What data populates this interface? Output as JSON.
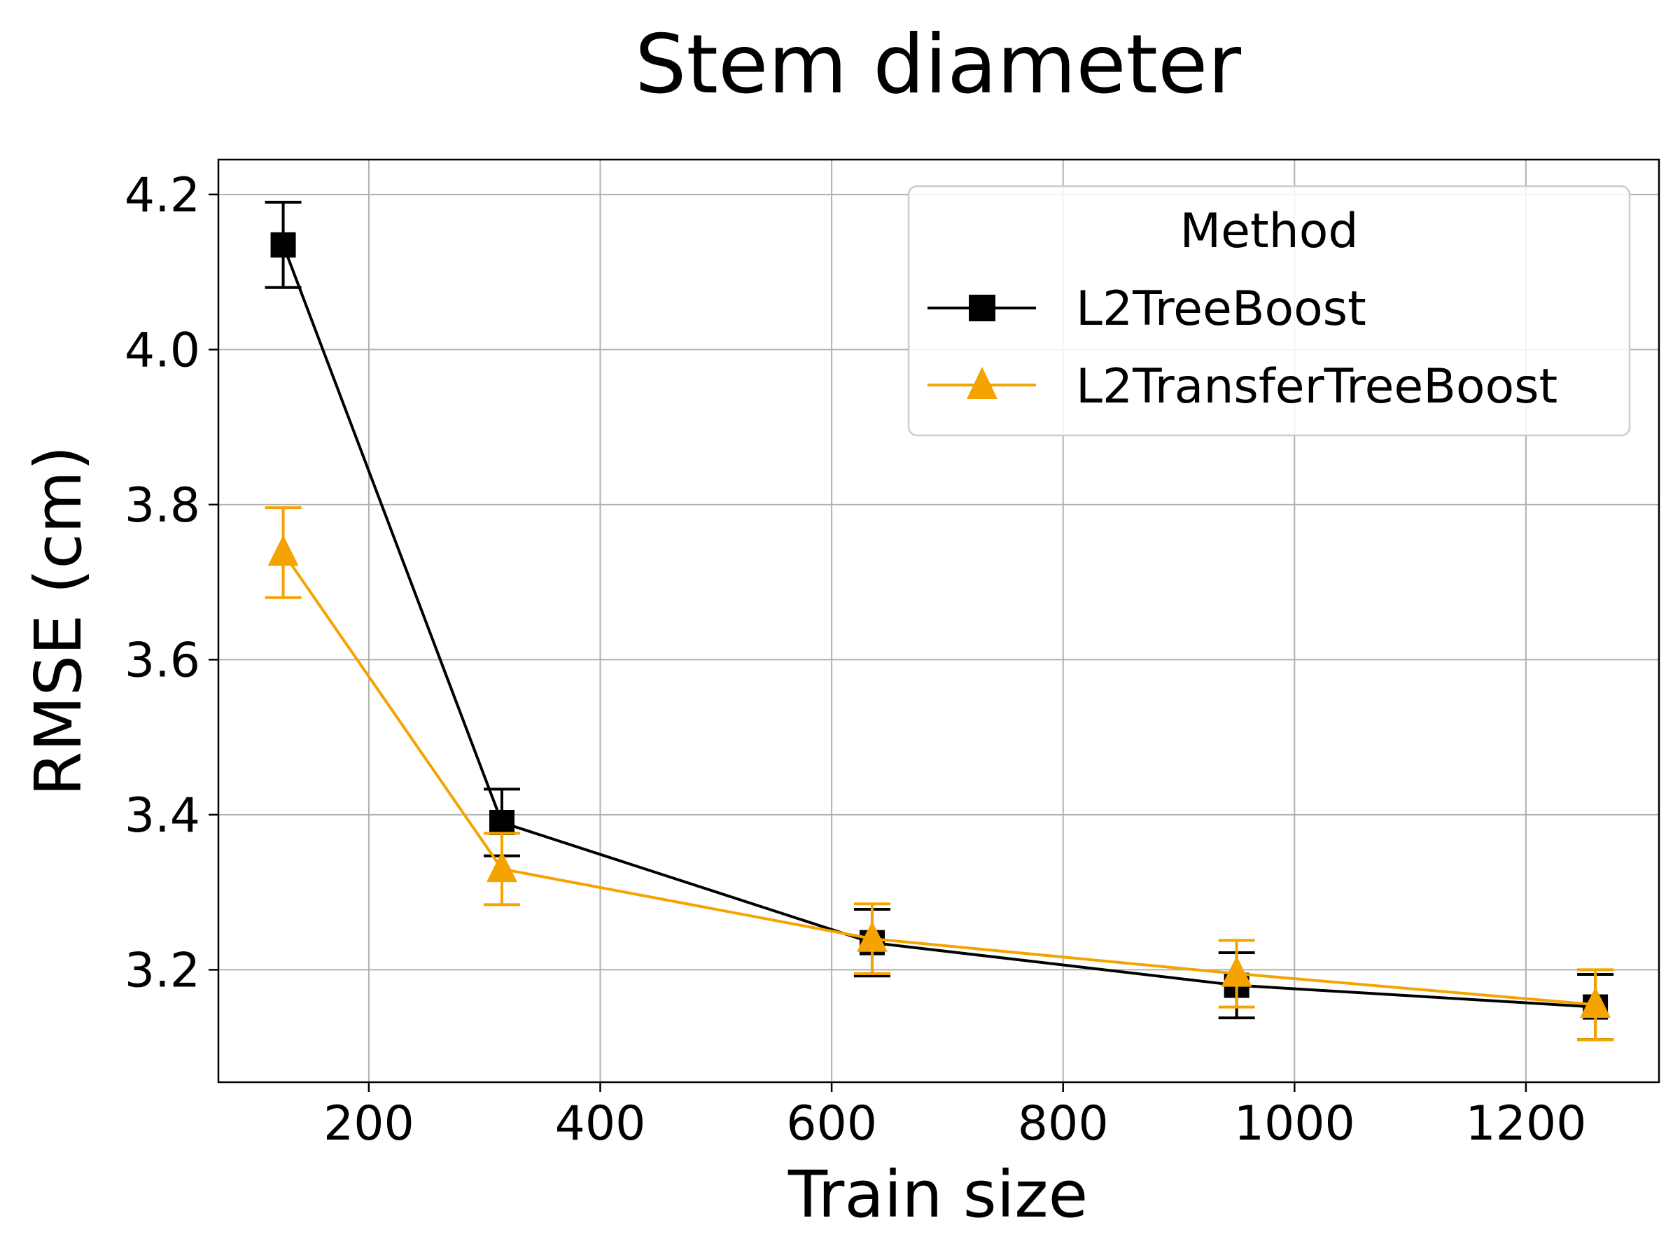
{
  "chart_data": {
    "type": "line",
    "title": "Stem diameter",
    "xlabel": "Train size",
    "ylabel": "RMSE (cm)",
    "xlim": [
      70,
      1315
    ],
    "ylim": [
      3.055,
      4.245
    ],
    "xticks": [
      200,
      400,
      600,
      800,
      1000,
      1200
    ],
    "yticks": [
      3.2,
      3.4,
      3.6,
      3.8,
      4.0,
      4.2
    ],
    "xtick_labels": [
      "200",
      "400",
      "600",
      "800",
      "1000",
      "1200"
    ],
    "ytick_labels": [
      "3.2",
      "3.4",
      "3.6",
      "3.8",
      "4.0",
      "4.2"
    ],
    "grid": true,
    "legend": {
      "title": "Method",
      "position": "top-right"
    },
    "series": [
      {
        "name": "L2TreeBoost",
        "color": "#000000",
        "marker": "square",
        "x": [
          126,
          315,
          635,
          950,
          1260
        ],
        "y": [
          4.135,
          3.39,
          3.235,
          3.18,
          3.152
        ],
        "err": [
          0.055,
          0.043,
          0.043,
          0.042,
          0.042
        ]
      },
      {
        "name": "L2TransferTreeBoost",
        "color": "#f5a300",
        "marker": "triangle",
        "x": [
          126,
          315,
          635,
          950,
          1260
        ],
        "y": [
          3.738,
          3.33,
          3.24,
          3.195,
          3.155
        ],
        "err": [
          0.058,
          0.046,
          0.045,
          0.043,
          0.045
        ]
      }
    ]
  }
}
